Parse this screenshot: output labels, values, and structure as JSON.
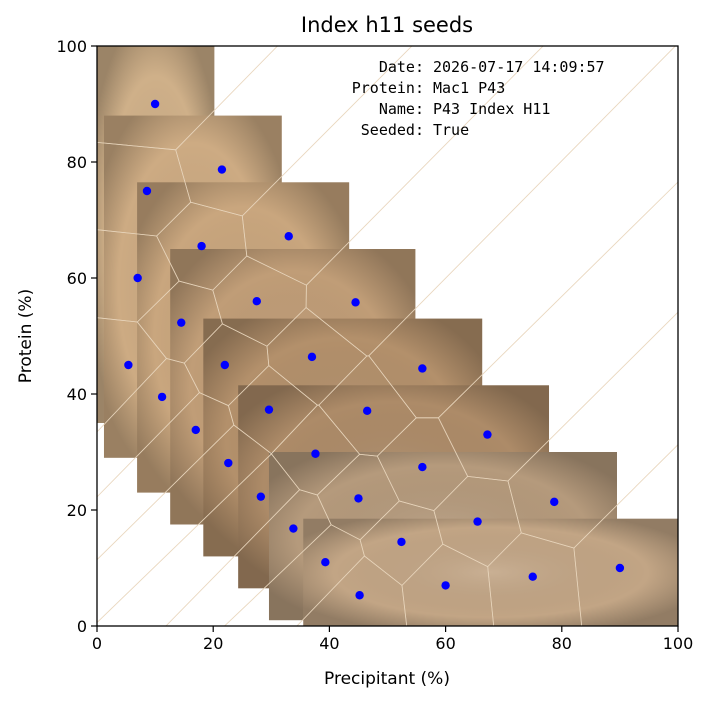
{
  "chart_data": {
    "type": "scatter",
    "title": "Index h11 seeds",
    "xlabel": "Precipitant (%)",
    "ylabel": "Protein (%)",
    "xlim": [
      0,
      100
    ],
    "ylim": [
      0,
      100
    ],
    "xticks": [
      0,
      20,
      40,
      60,
      80,
      100
    ],
    "yticks": [
      0,
      20,
      40,
      60,
      80,
      100
    ],
    "grid": false,
    "background": "microscope well images tiled in a staircase (Voronoi cells around each point)",
    "marker_color": "#0000ff",
    "annotation": {
      "lines": [
        {
          "key": "Date:",
          "value": "2026-07-17 14:09:57"
        },
        {
          "key": "Protein:",
          "value": "Mac1 P43"
        },
        {
          "key": "Name:",
          "value": "P43 Index H11"
        },
        {
          "key": "Seeded:",
          "value": "True"
        }
      ]
    },
    "points": [
      {
        "x": 10,
        "y": 90
      },
      {
        "x": 21.5,
        "y": 78.7
      },
      {
        "x": 8.6,
        "y": 75
      },
      {
        "x": 33,
        "y": 67.2
      },
      {
        "x": 18,
        "y": 65.5
      },
      {
        "x": 7,
        "y": 60
      },
      {
        "x": 44.5,
        "y": 55.8
      },
      {
        "x": 27.5,
        "y": 56
      },
      {
        "x": 14.5,
        "y": 52.3
      },
      {
        "x": 56,
        "y": 44.4
      },
      {
        "x": 37,
        "y": 46.4
      },
      {
        "x": 22,
        "y": 45
      },
      {
        "x": 5.4,
        "y": 45
      },
      {
        "x": 11.2,
        "y": 39.5
      },
      {
        "x": 46.5,
        "y": 37.1
      },
      {
        "x": 29.6,
        "y": 37.3
      },
      {
        "x": 67.2,
        "y": 33
      },
      {
        "x": 17,
        "y": 33.8
      },
      {
        "x": 37.6,
        "y": 29.7
      },
      {
        "x": 56,
        "y": 27.4
      },
      {
        "x": 22.6,
        "y": 28.1
      },
      {
        "x": 78.7,
        "y": 21.4
      },
      {
        "x": 45,
        "y": 22
      },
      {
        "x": 28.2,
        "y": 22.3
      },
      {
        "x": 65.5,
        "y": 18
      },
      {
        "x": 33.8,
        "y": 16.8
      },
      {
        "x": 52.4,
        "y": 14.5
      },
      {
        "x": 90,
        "y": 10
      },
      {
        "x": 39.3,
        "y": 11
      },
      {
        "x": 75,
        "y": 8.5
      },
      {
        "x": 60,
        "y": 7
      },
      {
        "x": 45.2,
        "y": 5.3
      }
    ],
    "columns": [
      {
        "x_from": 0,
        "x_to": 20.2,
        "y_from": 35,
        "y_to": 100,
        "shade": "#cfb089"
      },
      {
        "x_from": 1.2,
        "x_to": 31.8,
        "y_from": 29,
        "y_to": 88,
        "shade": "#cdab83"
      },
      {
        "x_from": 6.9,
        "x_to": 43.4,
        "y_from": 23,
        "y_to": 76.5,
        "shade": "#c9a67e"
      },
      {
        "x_from": 12.6,
        "x_to": 54.8,
        "y_from": 17.5,
        "y_to": 65,
        "shade": "#c09d77"
      },
      {
        "x_from": 18.3,
        "x_to": 66.3,
        "y_from": 12,
        "y_to": 53,
        "shade": "#b3906b"
      },
      {
        "x_from": 24.3,
        "x_to": 77.8,
        "y_from": 6.5,
        "y_to": 41.5,
        "shade": "#ad8b68"
      },
      {
        "x_from": 29.6,
        "x_to": 89.5,
        "y_from": 1,
        "y_to": 30,
        "shade": "#b59a7c"
      },
      {
        "x_from": 35.5,
        "x_to": 100,
        "y_from": 0,
        "y_to": 18.5,
        "shade": "#c2a585"
      }
    ]
  }
}
